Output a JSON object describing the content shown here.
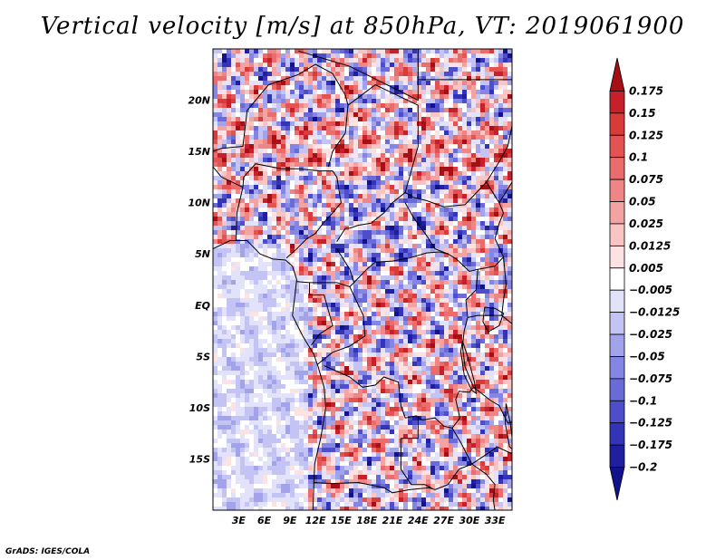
{
  "title": "Vertical velocity [m/s] at 850hPa, VT: 2019061900",
  "footer": "GrADS: IGES/COLA",
  "map": {
    "lon_range": [
      0,
      35
    ],
    "lat_range": [
      -20,
      25
    ],
    "lat_tick_labels": [
      "20N",
      "15N",
      "10N",
      "5N",
      "EQ",
      "5S",
      "10S",
      "15S"
    ],
    "lat_tick_values": [
      20,
      15,
      10,
      5,
      0,
      -5,
      -10,
      -15
    ],
    "lon_tick_labels": [
      "3E",
      "6E",
      "9E",
      "12E",
      "15E",
      "18E",
      "21E",
      "24E",
      "27E",
      "30E",
      "33E"
    ],
    "lon_tick_values": [
      3,
      6,
      9,
      12,
      15,
      18,
      21,
      24,
      27,
      30,
      33
    ]
  },
  "colorbar": {
    "labels": [
      "0.175",
      "0.15",
      "0.125",
      "0.1",
      "0.075",
      "0.05",
      "0.025",
      "0.0125",
      "0.005",
      "−0.005",
      "−0.0125",
      "−0.025",
      "−0.05",
      "−0.075",
      "−0.1",
      "−0.125",
      "−0.175",
      "−0.2"
    ],
    "colors": [
      "#a50f15",
      "#c8202a",
      "#d93a3a",
      "#e35353",
      "#ea6c6c",
      "#ef8585",
      "#f4a3a3",
      "#f8c4c4",
      "#fce2e2",
      "#ffffff",
      "#e2e2fa",
      "#c4c4f4",
      "#a3a3ec",
      "#8585e4",
      "#6a6ad8",
      "#4e4ecb",
      "#3434b8",
      "#1f1fa0",
      "#12128a"
    ]
  }
}
